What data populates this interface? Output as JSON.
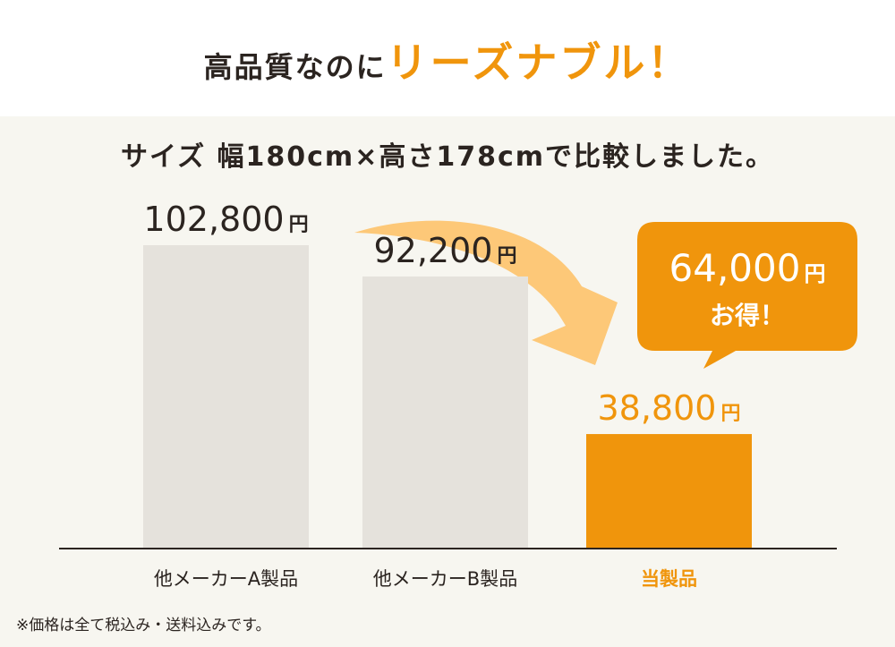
{
  "headline": {
    "lead": "高品質なのに",
    "accent": "リーズナブル！"
  },
  "chart_data": {
    "type": "bar",
    "title": "サイズ 幅180cm×高さ178cmで比較しました。",
    "categories": [
      "他メーカーA製品",
      "他メーカーB製品",
      "当製品"
    ],
    "values": [
      102800,
      92200,
      38800
    ],
    "value_labels": [
      "102,800",
      "92,200",
      "38,800"
    ],
    "unit": "円",
    "ylim": [
      0,
      102800
    ],
    "grid": false,
    "highlight_index": 2,
    "callout": {
      "amount": "64,000",
      "unit": "円",
      "text": "お得！"
    }
  },
  "colors": {
    "accent": "#f0950c",
    "bar": "#e5e2dc",
    "arrow": "#fdc878",
    "text": "#2b2420",
    "panel": "#f7f6f0"
  },
  "footnote": "※価格は全て税込み・送料込みです。"
}
